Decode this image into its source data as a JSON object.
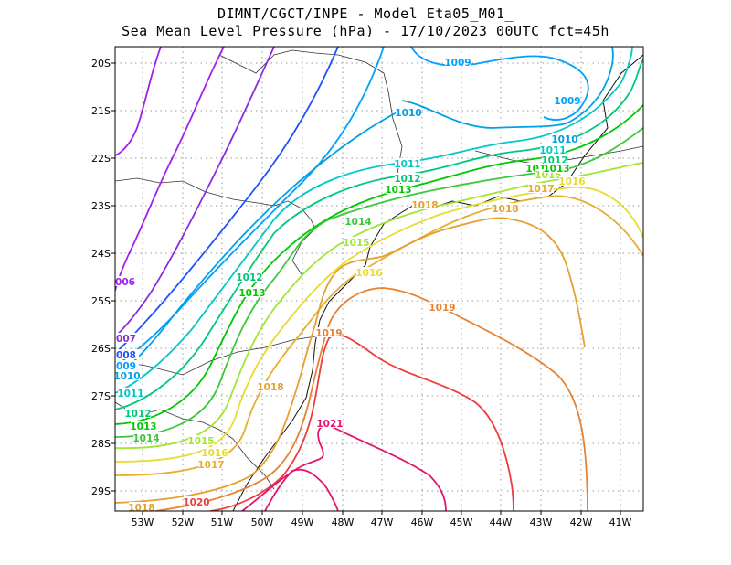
{
  "title_line1": "DIMNT/CGCT/INPE -  Model Eta05_M01_",
  "title_line2": "Sea Mean Level Pressure (hPa) - 17/10/2023 00UTC fct=45h",
  "lat_ticks": [
    "20S",
    "21S",
    "22S",
    "23S",
    "24S",
    "25S",
    "26S",
    "27S",
    "28S",
    "29S"
  ],
  "lon_ticks": [
    "53W",
    "52W",
    "51W",
    "50W",
    "49W",
    "48W",
    "47W",
    "46W",
    "45W",
    "44W",
    "43W",
    "42W",
    "41W"
  ],
  "isobar_colors": {
    "1006": "#a020f0",
    "1007": "#8a2be2",
    "1008": "#1e50ff",
    "1009": "#00a0ff",
    "1010": "#00a0e6",
    "1011": "#00c8c8",
    "1012": "#00c87a",
    "1013": "#00c800",
    "1014": "#3cc83c",
    "1015": "#a0e632",
    "1016": "#e6dc32",
    "1017": "#e6af2d",
    "1018": "#e6a02d",
    "1019": "#e68232",
    "1020": "#f03c3c",
    "1021": "#e6146e"
  },
  "contour_labels": [
    {
      "text": "1009"
    },
    {
      "text": "1009"
    },
    {
      "text": "1010"
    },
    {
      "text": "1010"
    },
    {
      "text": "1011"
    },
    {
      "text": "1012"
    },
    {
      "text": "1013"
    },
    {
      "text": "1013"
    },
    {
      "text": "1015"
    },
    {
      "text": "1016"
    },
    {
      "text": "1017"
    },
    {
      "text": "1018"
    },
    {
      "text": "1011"
    },
    {
      "text": "1012"
    },
    {
      "text": "1013"
    },
    {
      "text": "1014"
    },
    {
      "text": "1015"
    },
    {
      "text": "1016"
    },
    {
      "text": "1018"
    },
    {
      "text": "1012"
    },
    {
      "text": "1013"
    },
    {
      "text": "006"
    },
    {
      "text": "007"
    },
    {
      "text": "008"
    },
    {
      "text": "009"
    },
    {
      "text": "1010"
    },
    {
      "text": "1011"
    },
    {
      "text": "1012"
    },
    {
      "text": "1013"
    },
    {
      "text": "1014"
    },
    {
      "text": "1015"
    },
    {
      "text": "1016"
    },
    {
      "text": "1017"
    },
    {
      "text": "1018"
    },
    {
      "text": "1019"
    },
    {
      "text": "1018"
    },
    {
      "text": "1020"
    },
    {
      "text": "1019"
    },
    {
      "text": "1021"
    }
  ]
}
